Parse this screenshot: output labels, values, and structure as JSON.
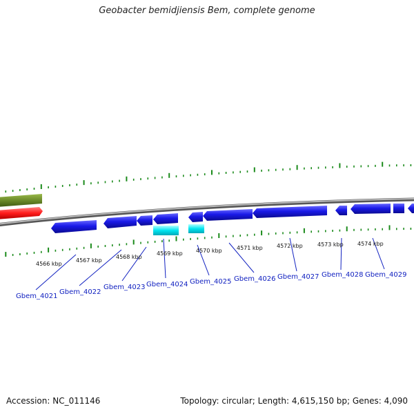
{
  "title": "Geobacter bemidjiensis Bem, complete genome",
  "footer": {
    "accession": "Accession: NC_011146",
    "summary": "Topology: circular; Length: 4,615,150 bp; Genes: 4,090"
  },
  "colors": {
    "backbone": "#8a8a8a",
    "tick": "#1a8a1a",
    "gene_forward_upper": "#6b8a2a",
    "gene_forward_lower": "#ff1a1a",
    "gene_reverse": "#1515e0",
    "gene_rna": "#00e5f0",
    "label": "#1020c0"
  },
  "scale_labels": [
    "4566 kbp",
    "4567 kbp",
    "4568 kbp",
    "4569 kbp",
    "4570 kbp",
    "4571 kbp",
    "4572 kbp",
    "4573 kbp",
    "4574 kbp"
  ],
  "gene_labels": [
    "Gbem_4021",
    "Gbem_4022",
    "Gbem_4023",
    "Gbem_4024",
    "Gbem_4025",
    "Gbem_4026",
    "Gbem_4027",
    "Gbem_4028",
    "Gbem_4029"
  ]
}
